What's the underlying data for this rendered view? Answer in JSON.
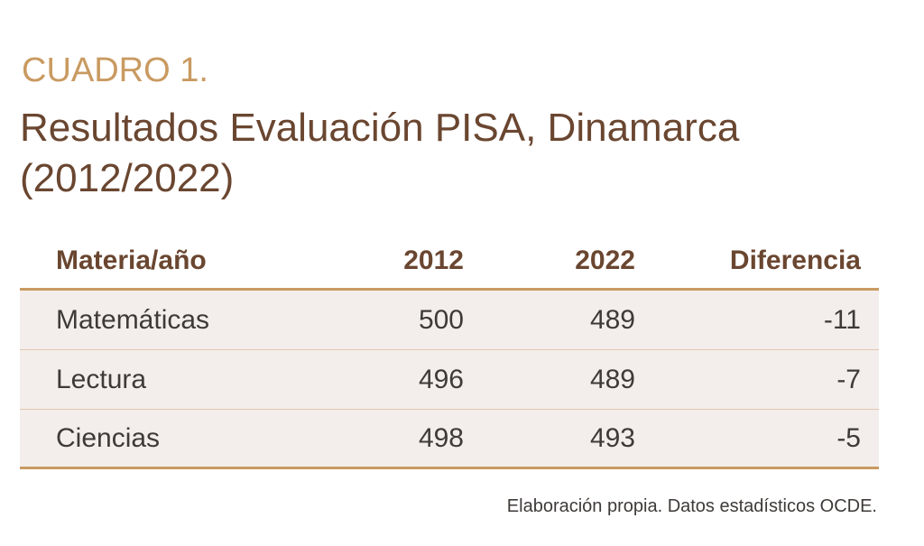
{
  "heading": {
    "label": "CUADRO 1.",
    "title_line1": "Resultados Evaluación PISA, Dinamarca",
    "title_line2": "(2012/2022)"
  },
  "table": {
    "columns": [
      "Materia/año",
      "2012",
      "2022",
      "Diferencia"
    ],
    "rows": [
      [
        "Matemáticas",
        "500",
        "489",
        "-11"
      ],
      [
        "Lectura",
        "496",
        "489",
        "-7"
      ],
      [
        "Ciencias",
        "498",
        "493",
        "-5"
      ]
    ]
  },
  "source": "Elaboración propia. Datos estadísticos OCDE.",
  "colors": {
    "accent": "#c99a61",
    "title": "#6a4630",
    "row_background": "#f3eeec",
    "text": "#3e3a38"
  }
}
